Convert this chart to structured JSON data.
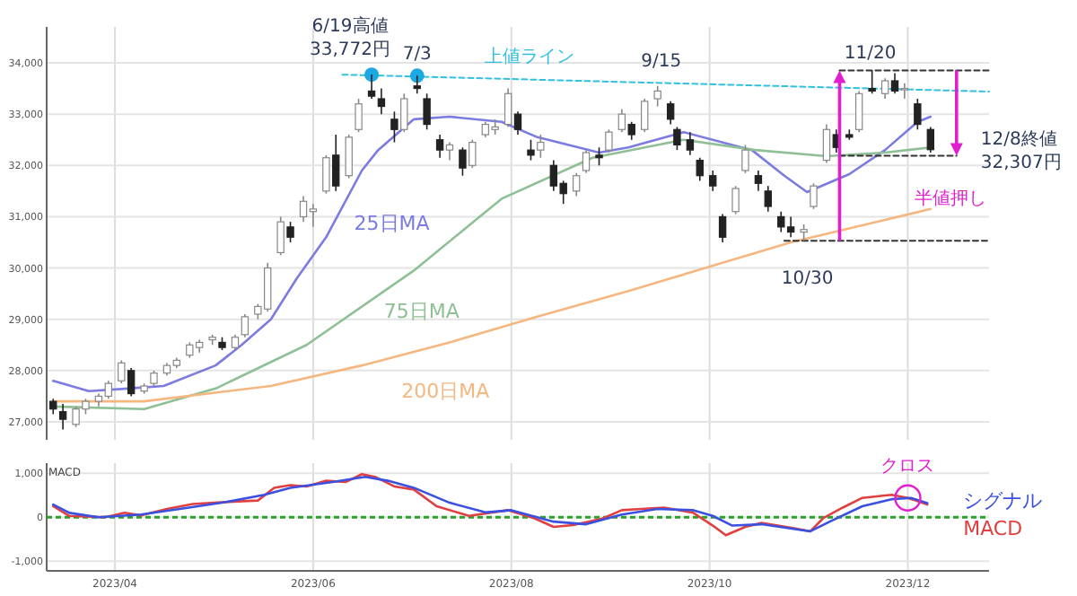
{
  "chart_data": [
    {
      "type": "candlestick",
      "x": [
        "2023-03-13",
        "2023-03-16",
        "2023-03-20",
        "2023-03-23",
        "2023-03-27",
        "2023-03-30",
        "2023-04-03",
        "2023-04-06",
        "2023-04-10",
        "2023-04-13",
        "2023-04-17",
        "2023-04-20",
        "2023-04-24",
        "2023-04-27",
        "2023-05-01",
        "2023-05-04",
        "2023-05-08",
        "2023-05-11",
        "2023-05-15",
        "2023-05-18",
        "2023-05-22",
        "2023-05-25",
        "2023-05-29",
        "2023-06-01",
        "2023-06-05",
        "2023-06-08",
        "2023-06-12",
        "2023-06-15",
        "2023-06-19",
        "2023-06-22",
        "2023-06-26",
        "2023-06-29",
        "2023-07-03",
        "2023-07-06",
        "2023-07-10",
        "2023-07-13",
        "2023-07-17",
        "2023-07-20",
        "2023-07-24",
        "2023-07-27",
        "2023-07-31",
        "2023-08-03",
        "2023-08-07",
        "2023-08-10",
        "2023-08-14",
        "2023-08-17",
        "2023-08-21",
        "2023-08-24",
        "2023-08-28",
        "2023-08-31",
        "2023-09-04",
        "2023-09-07",
        "2023-09-11",
        "2023-09-15",
        "2023-09-19",
        "2023-09-21",
        "2023-09-25",
        "2023-09-28",
        "2023-10-02",
        "2023-10-05",
        "2023-10-09",
        "2023-10-12",
        "2023-10-16",
        "2023-10-19",
        "2023-10-23",
        "2023-10-26",
        "2023-10-30",
        "2023-11-02",
        "2023-11-06",
        "2023-11-09",
        "2023-11-13",
        "2023-11-16",
        "2023-11-20",
        "2023-11-24",
        "2023-11-27",
        "2023-11-30",
        "2023-12-04",
        "2023-12-08"
      ],
      "ohlc": [
        [
          27400,
          27450,
          27150,
          27250
        ],
        [
          27200,
          27350,
          26850,
          27050
        ],
        [
          26950,
          27300,
          26900,
          27250
        ],
        [
          27250,
          27450,
          27150,
          27400
        ],
        [
          27400,
          27550,
          27300,
          27500
        ],
        [
          27500,
          27800,
          27450,
          27750
        ],
        [
          27800,
          28200,
          27750,
          28150
        ],
        [
          28000,
          28050,
          27500,
          27550
        ],
        [
          27600,
          27750,
          27550,
          27700
        ],
        [
          27750,
          28000,
          27700,
          27950
        ],
        [
          27950,
          28150,
          27900,
          28100
        ],
        [
          28100,
          28250,
          28050,
          28200
        ],
        [
          28300,
          28550,
          28250,
          28500
        ],
        [
          28450,
          28600,
          28350,
          28550
        ],
        [
          28600,
          28700,
          28500,
          28650
        ],
        [
          28550,
          28650,
          28400,
          28450
        ],
        [
          28450,
          28700,
          28400,
          28650
        ],
        [
          28700,
          29100,
          28650,
          29050
        ],
        [
          29100,
          29300,
          29000,
          29250
        ],
        [
          29200,
          30100,
          29150,
          30000
        ],
        [
          30300,
          31000,
          30250,
          30900
        ],
        [
          30800,
          30900,
          30500,
          30600
        ],
        [
          31000,
          31400,
          30900,
          31300
        ],
        [
          31100,
          31250,
          30800,
          31150
        ],
        [
          31500,
          32200,
          31450,
          32150
        ],
        [
          32200,
          32600,
          31500,
          31600
        ],
        [
          31800,
          32600,
          31750,
          32550
        ],
        [
          32700,
          33300,
          32650,
          33200
        ],
        [
          33450,
          33772,
          33300,
          33350
        ],
        [
          33300,
          33500,
          33000,
          33150
        ],
        [
          32900,
          33050,
          32450,
          32700
        ],
        [
          32700,
          33400,
          32650,
          33300
        ],
        [
          33550,
          33750,
          33400,
          33500
        ],
        [
          33300,
          33400,
          32700,
          32800
        ],
        [
          32500,
          32600,
          32150,
          32300
        ],
        [
          32300,
          32450,
          32100,
          32400
        ],
        [
          32300,
          32350,
          31800,
          31950
        ],
        [
          32000,
          32500,
          31950,
          32450
        ],
        [
          32600,
          32850,
          32550,
          32800
        ],
        [
          32700,
          32900,
          32600,
          32750
        ],
        [
          32800,
          33500,
          32750,
          33400
        ],
        [
          33000,
          33050,
          32600,
          32700
        ],
        [
          32300,
          32500,
          32100,
          32200
        ],
        [
          32300,
          32600,
          32150,
          32450
        ],
        [
          32000,
          32100,
          31500,
          31600
        ],
        [
          31650,
          31700,
          31250,
          31450
        ],
        [
          31500,
          31850,
          31400,
          31800
        ],
        [
          31900,
          32300,
          31850,
          32250
        ],
        [
          32200,
          32350,
          32000,
          32150
        ],
        [
          32300,
          32700,
          32250,
          32650
        ],
        [
          32700,
          33100,
          32650,
          33000
        ],
        [
          32800,
          32850,
          32500,
          32600
        ],
        [
          32700,
          33300,
          32650,
          33250
        ],
        [
          33300,
          33550,
          33150,
          33450
        ],
        [
          33200,
          33250,
          32800,
          32900
        ],
        [
          32700,
          32750,
          32300,
          32400
        ],
        [
          32500,
          32650,
          32200,
          32300
        ],
        [
          32100,
          32150,
          31700,
          31800
        ],
        [
          31800,
          31900,
          31500,
          31600
        ],
        [
          31000,
          31050,
          30500,
          30600
        ],
        [
          31100,
          31600,
          31050,
          31550
        ],
        [
          31900,
          32400,
          31850,
          32300
        ],
        [
          31800,
          31900,
          31500,
          31650
        ],
        [
          31500,
          31600,
          31100,
          31200
        ],
        [
          31000,
          31100,
          30700,
          30800
        ],
        [
          30800,
          31000,
          30600,
          30700
        ],
        [
          30700,
          30850,
          30530,
          30750
        ],
        [
          31200,
          31650,
          31150,
          31600
        ],
        [
          32100,
          32800,
          32050,
          32700
        ],
        [
          32600,
          32700,
          32250,
          32350
        ],
        [
          32600,
          32700,
          32500,
          32550
        ],
        [
          32700,
          33450,
          32650,
          33400
        ],
        [
          33500,
          33850,
          33400,
          33450
        ],
        [
          33400,
          33700,
          33300,
          33650
        ],
        [
          33650,
          33800,
          33400,
          33450
        ],
        [
          33500,
          33600,
          33300,
          33500
        ],
        [
          33200,
          33300,
          32700,
          32800
        ],
        [
          32700,
          32750,
          32250,
          32307
        ]
      ],
      "series": [
        {
          "name": "25日MA",
          "type": "line",
          "color": "#7b7be0",
          "x": [
            "2023-03-13",
            "2023-03-24",
            "2023-04-05",
            "2023-04-16",
            "2023-05-02",
            "2023-05-10",
            "2023-05-19",
            "2023-05-27",
            "2023-06-05",
            "2023-06-16",
            "2023-06-21",
            "2023-07-02",
            "2023-07-13",
            "2023-07-29",
            "2023-08-09",
            "2023-08-28",
            "2023-09-06",
            "2023-09-23",
            "2023-10-14",
            "2023-10-24",
            "2023-10-31",
            "2023-11-13",
            "2023-11-24",
            "2023-12-04",
            "2023-12-08"
          ],
          "values": [
            27800,
            27600,
            27650,
            27700,
            28100,
            28500,
            29000,
            29800,
            30600,
            31900,
            32300,
            32900,
            32950,
            32850,
            32550,
            32250,
            32350,
            32650,
            32300,
            31800,
            31480,
            31830,
            32300,
            32850,
            32950
          ]
        },
        {
          "name": "75日MA",
          "type": "line",
          "color": "#8fbf94",
          "x": [
            "2023-03-13",
            "2023-04-10",
            "2023-05-02",
            "2023-05-30",
            "2023-07-02",
            "2023-07-29",
            "2023-08-26",
            "2023-09-23",
            "2023-10-15",
            "2023-11-06",
            "2023-11-24",
            "2023-12-08"
          ],
          "values": [
            27300,
            27250,
            27650,
            28500,
            29950,
            31350,
            32150,
            32500,
            32300,
            32180,
            32250,
            32350
          ]
        },
        {
          "name": "200日MA",
          "type": "line",
          "color": "#f5b77f",
          "x": [
            "2023-03-13",
            "2023-04-10",
            "2023-05-19",
            "2023-06-16",
            "2023-07-13",
            "2023-08-09",
            "2023-09-06",
            "2023-10-26",
            "2023-12-08"
          ],
          "values": [
            27400,
            27400,
            27700,
            28100,
            28550,
            29050,
            29550,
            30500,
            31150
          ]
        },
        {
          "name": "上値ライン",
          "type": "line",
          "color": "#33c0e0",
          "line_style": "dashed",
          "x": [
            "2023-06-10",
            "2023-12-26"
          ],
          "values": [
            33770,
            33440
          ]
        },
        {
          "type": "line",
          "color": "#333333",
          "line_style": "dashed",
          "x": [
            "2023-11-10",
            "2023-12-26"
          ],
          "values": [
            33850,
            33850
          ]
        },
        {
          "type": "line",
          "color": "#333333",
          "line_style": "dashed",
          "x": [
            "2023-11-10",
            "2023-12-16"
          ],
          "values": [
            32190,
            32190
          ]
        },
        {
          "type": "line",
          "color": "#333333",
          "line_style": "dashed",
          "x": [
            "2023-10-24",
            "2023-12-26"
          ],
          "values": [
            30530,
            30530
          ]
        },
        {
          "type": "scatter",
          "marker": "circle",
          "color": "#1ca8e0",
          "x": [
            "2023-06-19",
            "2023-07-03"
          ],
          "values": [
            33770,
            33750
          ]
        }
      ],
      "xlim": [
        "2023-03-11",
        "2023-12-26"
      ],
      "xticks": [
        {
          "value": "2023-04-01",
          "label": null
        },
        {
          "value": "2023-06-01",
          "label": null
        },
        {
          "value": "2023-08-01",
          "label": null
        },
        {
          "value": "2023-10-01",
          "label": null
        },
        {
          "value": "2023-12-01",
          "label": null
        }
      ],
      "ylim": [
        26650,
        34700
      ],
      "yticks": [
        {
          "value": 27000,
          "label": "27,000"
        },
        {
          "value": 28000,
          "label": "28,000"
        },
        {
          "value": 29000,
          "label": "29,000"
        },
        {
          "value": 30000,
          "label": "30,000"
        },
        {
          "value": 31000,
          "label": "31,000"
        },
        {
          "value": 32000,
          "label": "32,000"
        },
        {
          "value": 33000,
          "label": "33,000"
        },
        {
          "value": 34000,
          "label": "34,000"
        }
      ],
      "tick_labels": "y",
      "grid": true,
      "annotations": [
        {
          "text": "6/19高値\n33,772円",
          "x": "2023-06-19",
          "y": 33772
        },
        {
          "text": "7/3",
          "x": "2023-07-03",
          "y": 33750
        },
        {
          "text": "9/15",
          "x": "2023-09-15",
          "y": 33550
        },
        {
          "text": "11/20",
          "x": "2023-11-20",
          "y": 33850
        },
        {
          "text": "10/30",
          "x": "2023-10-30",
          "y": 30530
        },
        {
          "text": "12/8終値\n32,307円",
          "x": "2023-12-08",
          "y": 32307
        },
        {
          "text": "半値押し",
          "x": "2023-12-14",
          "y": 32190
        }
      ]
    },
    {
      "type": "line",
      "title": "MACD",
      "series": [
        {
          "name": "MACD",
          "color": "#e04040",
          "x": [
            "2023-03-13",
            "2023-03-18",
            "2023-03-29",
            "2023-04-04",
            "2023-04-09",
            "2023-04-17",
            "2023-04-25",
            "2023-05-06",
            "2023-05-15",
            "2023-05-20",
            "2023-05-25",
            "2023-05-30",
            "2023-06-05",
            "2023-06-11",
            "2023-06-16",
            "2023-06-20",
            "2023-06-26",
            "2023-07-02",
            "2023-07-09",
            "2023-07-19",
            "2023-07-31",
            "2023-08-08",
            "2023-08-14",
            "2023-08-20",
            "2023-08-29",
            "2023-09-04",
            "2023-09-10",
            "2023-09-17",
            "2023-09-26",
            "2023-10-02",
            "2023-10-06",
            "2023-10-12",
            "2023-10-17",
            "2023-10-27",
            "2023-11-01",
            "2023-11-05",
            "2023-11-11",
            "2023-11-17",
            "2023-11-26",
            "2023-12-01",
            "2023-12-07"
          ],
          "values": [
            250,
            30,
            0,
            100,
            40,
            190,
            300,
            350,
            380,
            670,
            730,
            700,
            830,
            800,
            980,
            920,
            700,
            630,
            250,
            30,
            160,
            -20,
            -220,
            -180,
            -30,
            160,
            190,
            220,
            100,
            -190,
            -410,
            -220,
            -130,
            -250,
            -320,
            -20,
            220,
            440,
            510,
            440,
            290
          ]
        },
        {
          "name": "シグナル",
          "color": "#3b50e0",
          "x": [
            "2023-03-13",
            "2023-03-18",
            "2023-03-27",
            "2023-04-09",
            "2023-04-21",
            "2023-05-04",
            "2023-05-17",
            "2023-05-25",
            "2023-06-07",
            "2023-06-17",
            "2023-06-24",
            "2023-07-02",
            "2023-07-13",
            "2023-07-24",
            "2023-08-01",
            "2023-08-14",
            "2023-08-24",
            "2023-09-04",
            "2023-09-15",
            "2023-09-26",
            "2023-10-02",
            "2023-10-08",
            "2023-10-17",
            "2023-11-01",
            "2023-11-07",
            "2023-11-17",
            "2023-11-26",
            "2023-12-02",
            "2023-12-07"
          ],
          "values": [
            290,
            100,
            0,
            60,
            190,
            330,
            510,
            670,
            800,
            920,
            830,
            670,
            330,
            110,
            160,
            -100,
            -160,
            60,
            190,
            160,
            30,
            -190,
            -160,
            -320,
            -100,
            250,
            410,
            440,
            320
          ]
        }
      ],
      "xlim": [
        "2023-03-11",
        "2023-12-26"
      ],
      "xticks": [
        {
          "value": "2023-04-01",
          "label": "2023/04"
        },
        {
          "value": "2023-06-01",
          "label": "2023/06"
        },
        {
          "value": "2023-08-01",
          "label": "2023/08"
        },
        {
          "value": "2023-10-01",
          "label": "2023/10"
        },
        {
          "value": "2023-12-01",
          "label": "2023/12"
        }
      ],
      "ylim": [
        -1220,
        1230
      ],
      "yticks": [
        {
          "value": -1000,
          "label": "-1,000"
        },
        {
          "value": 0,
          "label": "0"
        },
        {
          "value": 1000,
          "label": "1,000"
        }
      ],
      "grid": true,
      "ref_lines": [
        {
          "axis": "y",
          "value": 0,
          "color": "#2ca02c",
          "line_style": "dashed"
        }
      ],
      "annotations": [
        {
          "text": "クロス",
          "x": "2023-12-01",
          "y": 440
        }
      ]
    }
  ]
}
